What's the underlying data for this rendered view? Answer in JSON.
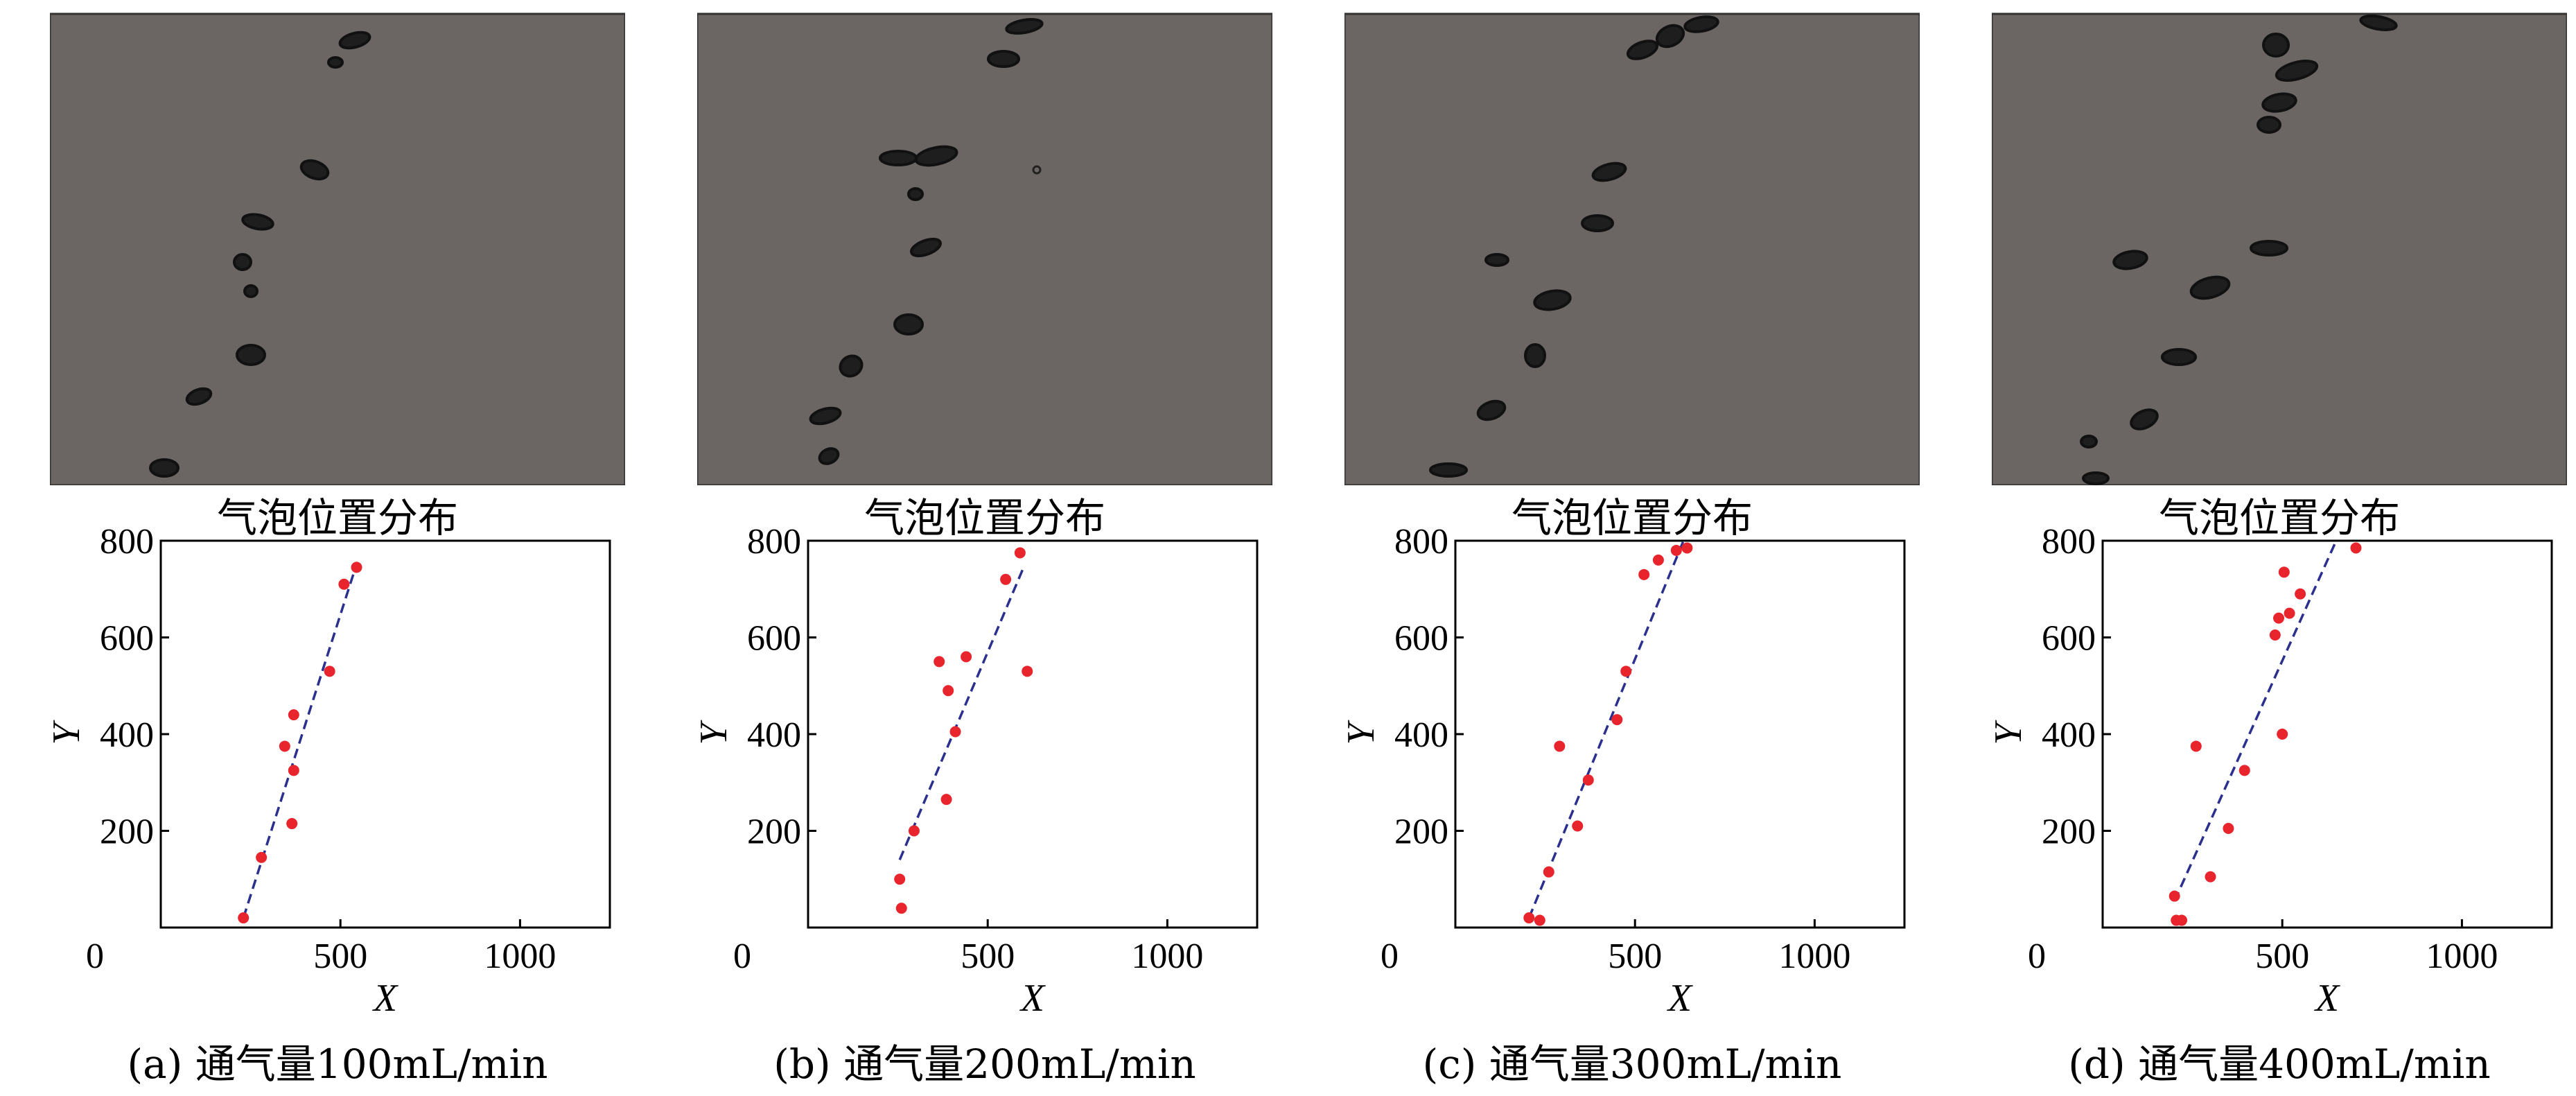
{
  "photo_caption": "气泡位置分布",
  "colors": {
    "point": "#e8252c",
    "fit_line": "#2b2f8e",
    "photo_bg": "#6b6664",
    "bubble": "#222222"
  },
  "chart_data": [
    {
      "type": "scatter",
      "panel_caption": "(a) 通气量100mL/min",
      "xlabel": "X",
      "ylabel": "Y",
      "xlim": [
        0,
        1250
      ],
      "ylim": [
        0,
        800
      ],
      "xticks": [
        0,
        500,
        1000
      ],
      "yticks": [
        200,
        400,
        600,
        800
      ],
      "tick_labels_x": [
        "0",
        "500",
        "1000"
      ],
      "tick_labels_y": [
        "200",
        "400",
        "600",
        "800"
      ],
      "points": [
        [
          230,
          20
        ],
        [
          280,
          145
        ],
        [
          345,
          375
        ],
        [
          370,
          440
        ],
        [
          370,
          325
        ],
        [
          365,
          215
        ],
        [
          470,
          530
        ],
        [
          510,
          710
        ],
        [
          545,
          745
        ]
      ],
      "fit": {
        "x1": 230,
        "y1": 20,
        "x2": 540,
        "y2": 740
      }
    },
    {
      "type": "scatter",
      "panel_caption": "(b) 通气量200mL/min",
      "xlabel": "X",
      "ylabel": "Y",
      "xlim": [
        0,
        1250
      ],
      "ylim": [
        0,
        800
      ],
      "xticks": [
        0,
        500,
        1000
      ],
      "yticks": [
        200,
        400,
        600,
        800
      ],
      "tick_labels_x": [
        "0",
        "500",
        "1000"
      ],
      "tick_labels_y": [
        "200",
        "400",
        "600",
        "800"
      ],
      "points": [
        [
          260,
          40
        ],
        [
          255,
          100
        ],
        [
          295,
          200
        ],
        [
          365,
          550
        ],
        [
          390,
          490
        ],
        [
          385,
          265
        ],
        [
          410,
          405
        ],
        [
          440,
          560
        ],
        [
          550,
          720
        ],
        [
          590,
          775
        ],
        [
          610,
          530
        ]
      ],
      "fit": {
        "x1": 255,
        "y1": 140,
        "x2": 600,
        "y2": 745
      }
    },
    {
      "type": "scatter",
      "panel_caption": "(c) 通气量300mL/min",
      "xlabel": "X",
      "ylabel": "Y",
      "xlim": [
        0,
        1250
      ],
      "ylim": [
        0,
        800
      ],
      "xticks": [
        0,
        500,
        1000
      ],
      "yticks": [
        200,
        400,
        600,
        800
      ],
      "tick_labels_x": [
        "0",
        "500",
        "1000"
      ],
      "tick_labels_y": [
        "200",
        "400",
        "600",
        "800"
      ],
      "points": [
        [
          205,
          20
        ],
        [
          235,
          15
        ],
        [
          260,
          115
        ],
        [
          290,
          375
        ],
        [
          340,
          210
        ],
        [
          370,
          305
        ],
        [
          450,
          430
        ],
        [
          475,
          530
        ],
        [
          525,
          730
        ],
        [
          565,
          760
        ],
        [
          615,
          780
        ],
        [
          645,
          785
        ]
      ],
      "fit": {
        "x1": 205,
        "y1": 20,
        "x2": 635,
        "y2": 800
      }
    },
    {
      "type": "scatter",
      "panel_caption": "(d) 通气量400mL/min",
      "xlabel": "X",
      "ylabel": "Y",
      "xlim": [
        0,
        1250
      ],
      "ylim": [
        0,
        800
      ],
      "xticks": [
        0,
        500,
        1000
      ],
      "yticks": [
        200,
        400,
        600,
        800
      ],
      "tick_labels_x": [
        "0",
        "500",
        "1000"
      ],
      "tick_labels_y": [
        "200",
        "400",
        "600",
        "800"
      ],
      "points": [
        [
          200,
          65
        ],
        [
          205,
          15
        ],
        [
          220,
          15
        ],
        [
          260,
          375
        ],
        [
          300,
          105
        ],
        [
          350,
          205
        ],
        [
          395,
          325
        ],
        [
          480,
          605
        ],
        [
          490,
          640
        ],
        [
          500,
          400
        ],
        [
          505,
          735
        ],
        [
          520,
          650
        ],
        [
          550,
          690
        ],
        [
          705,
          785
        ]
      ],
      "fit": {
        "x1": 200,
        "y1": 55,
        "x2": 650,
        "y2": 800
      }
    }
  ]
}
